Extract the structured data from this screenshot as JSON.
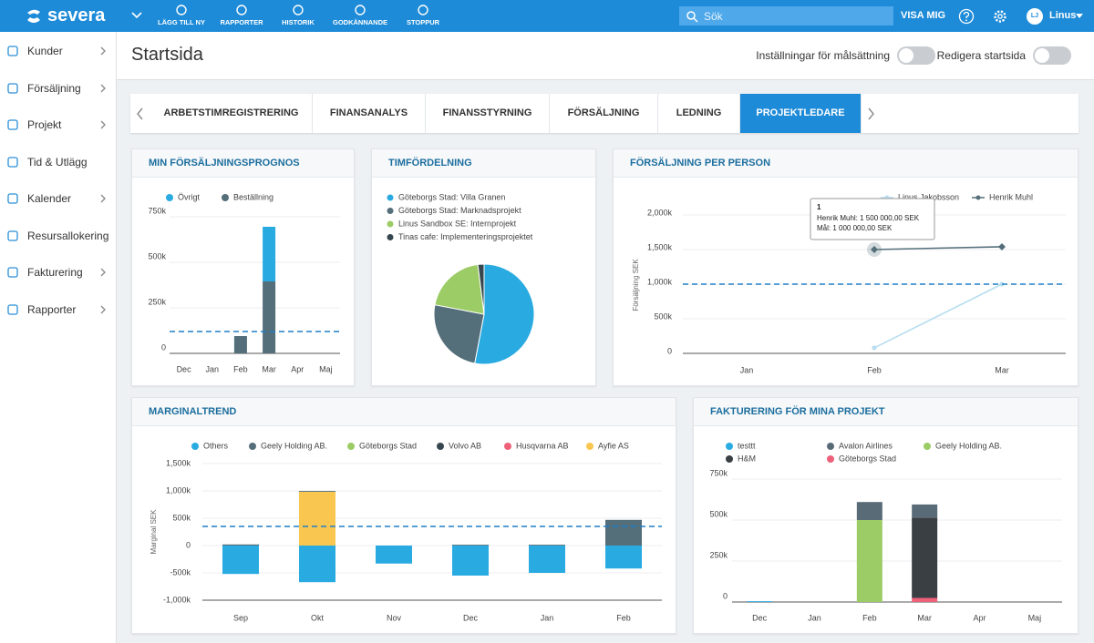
{
  "header": {
    "logo": "severa",
    "nav": [
      "LÄGG TILL NY",
      "RAPPORTER",
      "HISTORIK",
      "GODKÄNNANDE",
      "STOPPUR"
    ],
    "search": "Sök",
    "show_me": "VISA MIG",
    "avatar": "LJ",
    "user": "Linus"
  },
  "sidebar": [
    {
      "label": "Kunder",
      "expandable": true
    },
    {
      "label": "Försäljning",
      "expandable": true
    },
    {
      "label": "Projekt",
      "expandable": true
    },
    {
      "label": "Tid & Utlägg",
      "expandable": false
    },
    {
      "label": "Kalender",
      "expandable": true
    },
    {
      "label": "Resursallokering",
      "expandable": false
    },
    {
      "label": "Fakturering",
      "expandable": true
    },
    {
      "label": "Rapporter",
      "expandable": true
    }
  ],
  "page": {
    "title": "Startsida",
    "goal_settings": "Inställningar för målsättning",
    "edit": "Redigera startsida"
  },
  "tabs": {
    "items": [
      "ARBETSTIMREGISTRERING",
      "FINANSANALYS",
      "FINANSSTYRNING",
      "FÖRSÄLJNING",
      "LEDNING",
      "PROJEKTLEDARE"
    ],
    "active": 5
  },
  "widgets": [
    {
      "title": "MIN FÖRSÄLJNINGSPROGNOS",
      "chart": {
        "type": "bar",
        "stacked": true,
        "grid": true,
        "categories": [
          "Dec",
          "Jan",
          "Feb",
          "Mar",
          "Apr",
          "Maj"
        ],
        "series": [
          {
            "name": "Övrigt",
            "color": "#29abe2",
            "values": [
              0,
              0,
              0,
              300000,
              0,
              0
            ]
          },
          {
            "name": "Beställning",
            "color": "#546e7a",
            "values": [
              0,
              0,
              95000,
              395000,
              0,
              0
            ]
          }
        ],
        "target": 120000,
        "ylim": [
          0,
          750000
        ],
        "yticks": [
          0,
          {
            "value": 250000,
            "label": "250k"
          },
          {
            "value": 500000,
            "label": "500k"
          },
          {
            "value": 750000,
            "label": "750k"
          }
        ]
      }
    },
    {
      "title": "TIMFÖRDELNING",
      "chart": {
        "type": "pie",
        "categories": [
          "Göteborgs Stad: Villa Granen",
          "Göteborgs Stad: Marknadsprojekt",
          "Linus Sandbox SE: Internprojekt",
          "Tinas cafe: Implementeringsprojektet"
        ],
        "values": [
          53,
          25,
          20,
          2
        ],
        "colors": [
          "#29abe2",
          "#546e7a",
          "#9ccc65",
          "#37474f"
        ]
      }
    },
    {
      "title": "FÖRSÄLJNING PER PERSON",
      "chart": {
        "type": "line",
        "grid": true,
        "y_label": "Försäljning SEK",
        "categories": [
          "Jan",
          "Feb",
          "Mar"
        ],
        "series": [
          {
            "name": "Linus Jakobsson",
            "color": "#b8def0",
            "values": [
              null,
              80000,
              1000000
            ]
          },
          {
            "name": "Henrik Muhl",
            "color": "#546e7a",
            "values": [
              null,
              1500000,
              1540000
            ]
          }
        ],
        "target": 1000000,
        "ylim": [
          0,
          2000000
        ],
        "yticks": [
          0,
          {
            "value": 500000,
            "label": "500k"
          },
          {
            "value": 1000000,
            "label": "1,000k"
          },
          {
            "value": 1500000,
            "label": "1,500k"
          },
          {
            "value": 2000000,
            "label": "2,000k"
          }
        ],
        "tooltip": {
          "title": "1",
          "lines": [
            "Henrik Muhl: 1 500 000,00 SEK",
            "Mål: 1 000 000,00 SEK"
          ]
        }
      }
    },
    {
      "title": "MARGINALTREND",
      "chart": {
        "type": "bar",
        "stacked": true,
        "grid": true,
        "y_label": "Marginal SEK",
        "categories": [
          "Sep",
          "Okt",
          "Nov",
          "Dec",
          "Jan",
          "Feb"
        ],
        "series": [
          {
            "name": "Others",
            "color": "#29abe2",
            "values": [
              -520000,
              -670000,
              -330000,
              -550000,
              -500000,
              -420000
            ]
          },
          {
            "name": "Geely Holding AB.",
            "color": "#546e7a",
            "values": [
              20000,
              15000,
              0,
              15000,
              15000,
              470000
            ]
          },
          {
            "name": "Göteborgs Stad",
            "color": "#9ccc65",
            "values": [
              0,
              0,
              0,
              0,
              0,
              0
            ]
          },
          {
            "name": "Volvo AB",
            "color": "#37474f",
            "values": [
              0,
              0,
              0,
              0,
              0,
              0
            ]
          },
          {
            "name": "Husqvarna AB",
            "color": "#ef6079",
            "values": [
              0,
              0,
              0,
              0,
              0,
              0
            ]
          },
          {
            "name": "Ayfie AS",
            "color": "#f9c74f",
            "values": [
              0,
              985000,
              0,
              0,
              0,
              0
            ]
          }
        ],
        "target": 350000,
        "ylim": [
          -1000000,
          1500000
        ],
        "yticks": [
          {
            "value": -1000000,
            "label": "-1,000k"
          },
          {
            "value": -500000,
            "label": "-500k"
          },
          0,
          {
            "value": 500000,
            "label": "500k"
          },
          {
            "value": 1000000,
            "label": "1,000k"
          },
          {
            "value": 1500000,
            "label": "1,500k"
          }
        ]
      }
    },
    {
      "title": "FAKTURERING FÖR MINA PROJEKT",
      "chart": {
        "type": "bar",
        "stacked": true,
        "grid": true,
        "categories": [
          "Dec",
          "Jan",
          "Feb",
          "Mar",
          "Apr",
          "Maj"
        ],
        "series": [
          {
            "name": "testtt",
            "color": "#29abe2",
            "values": [
              5000,
              0,
              0,
              0,
              0,
              0
            ]
          },
          {
            "name": "Avalon Airlines",
            "color": "#5a6b78",
            "values": [
              0,
              0,
              110000,
              80000,
              0,
              0
            ]
          },
          {
            "name": "Geely Holding AB.",
            "color": "#9ccc65",
            "values": [
              0,
              0,
              500000,
              0,
              0,
              0
            ]
          },
          {
            "name": "H&M",
            "color": "#3a3f44",
            "values": [
              0,
              0,
              0,
              490000,
              0,
              0
            ]
          },
          {
            "name": "Göteborgs Stad",
            "color": "#ef6079",
            "values": [
              0,
              0,
              0,
              25000,
              0,
              0
            ]
          }
        ],
        "ylim": [
          0,
          750000
        ],
        "yticks": [
          0,
          {
            "value": 250000,
            "label": "250k"
          },
          {
            "value": 500000,
            "label": "500k"
          },
          {
            "value": 750000,
            "label": "750k"
          }
        ]
      }
    }
  ]
}
